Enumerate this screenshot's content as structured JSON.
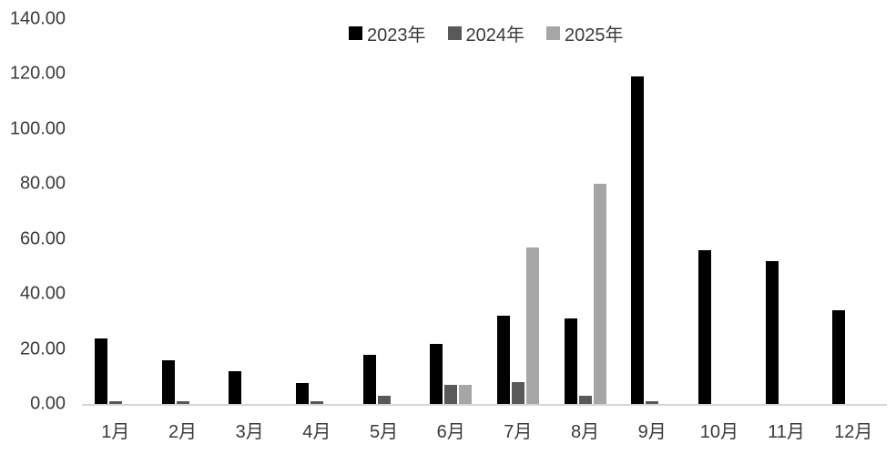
{
  "chart_data": {
    "type": "bar",
    "title": "",
    "categories": [
      "1月",
      "2月",
      "3月",
      "4月",
      "5月",
      "6月",
      "7月",
      "8月",
      "9月",
      "10月",
      "11月",
      "12月"
    ],
    "series": [
      {
        "name": "2023年",
        "color": "#000000",
        "values": [
          24,
          16,
          12,
          7.5,
          18,
          22,
          32,
          31,
          119,
          56,
          52,
          34
        ]
      },
      {
        "name": "2024年",
        "color": "#595959",
        "values": [
          1,
          1,
          0,
          1,
          3,
          7,
          8,
          3,
          1,
          0,
          0,
          0
        ]
      },
      {
        "name": "2025年",
        "color": "#a6a6a6",
        "values": [
          0,
          0,
          0,
          0,
          0,
          7,
          57,
          80,
          0,
          0,
          0,
          0
        ]
      }
    ],
    "ylim": [
      0,
      140
    ],
    "ytick_step": 20,
    "ytick_labels": [
      "140.00",
      "120.00",
      "100.00",
      "80.00",
      "60.00",
      "40.00",
      "20.00",
      "0.00"
    ],
    "grid": false,
    "legend_position": "top-center",
    "axis_line_color": "#d6d6d6",
    "text_color": "#3a3a3a"
  }
}
